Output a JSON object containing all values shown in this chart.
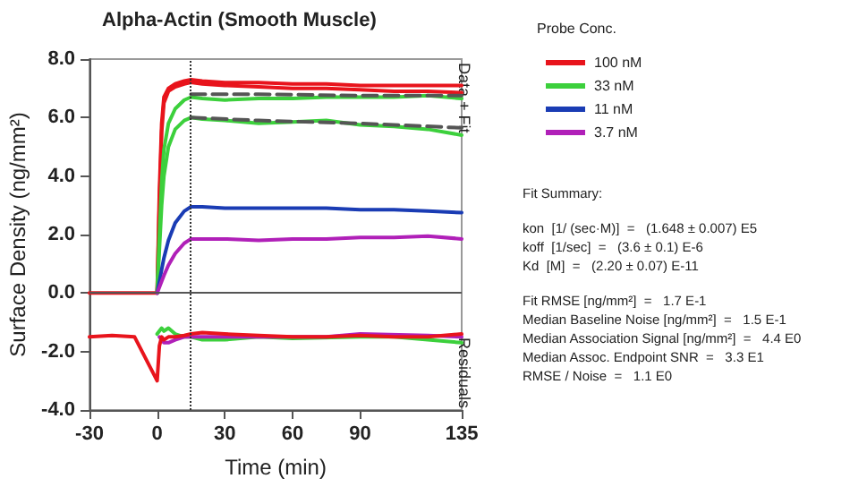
{
  "chart_data": {
    "type": "line",
    "title": "Alpha-Actin (Smooth Muscle)",
    "xlabel": "Time (min)",
    "ylabel": "Surface Density (ng/mm²)",
    "legend_title": "Probe Conc.",
    "x": [
      -30,
      -20,
      -10,
      0,
      1,
      2,
      3,
      5,
      8,
      12,
      15,
      20,
      30,
      45,
      60,
      75,
      90,
      105,
      120,
      135
    ],
    "series": [
      {
        "name": "100 nM",
        "color": "#e8141c",
        "values": [
          0,
          0,
          0,
          0,
          3.5,
          5.8,
          6.7,
          7.0,
          7.15,
          7.25,
          7.3,
          7.25,
          7.2,
          7.2,
          7.15,
          7.15,
          7.1,
          7.1,
          7.1,
          7.1
        ]
      },
      {
        "color": "#e8141c",
        "values": [
          null,
          null,
          null,
          0,
          3.0,
          5.5,
          6.5,
          6.9,
          7.05,
          7.15,
          7.2,
          7.15,
          7.1,
          7.05,
          7.0,
          7.0,
          6.95,
          6.9,
          6.9,
          6.85
        ]
      },
      {
        "name": "33 nM",
        "color": "#3cd03c",
        "values": [
          null,
          null,
          null,
          0,
          2.0,
          3.8,
          4.9,
          5.8,
          6.3,
          6.6,
          6.7,
          6.65,
          6.6,
          6.65,
          6.65,
          6.7,
          6.7,
          6.7,
          6.75,
          6.65
        ]
      },
      {
        "color": "#3cd03c",
        "values": [
          null,
          null,
          null,
          0,
          1.5,
          3.0,
          4.0,
          5.0,
          5.6,
          5.9,
          6.0,
          5.95,
          5.9,
          5.8,
          5.85,
          5.9,
          5.75,
          5.7,
          5.6,
          5.4
        ]
      },
      {
        "name": "11 nM",
        "color": "#1a3cb4",
        "values": [
          null,
          null,
          null,
          0,
          0.4,
          0.8,
          1.2,
          1.8,
          2.4,
          2.8,
          2.95,
          2.95,
          2.9,
          2.9,
          2.9,
          2.9,
          2.85,
          2.85,
          2.8,
          2.75
        ]
      },
      {
        "name": "3.7 nM",
        "color": "#b020b8",
        "values": [
          null,
          null,
          null,
          0,
          0.2,
          0.4,
          0.6,
          0.95,
          1.35,
          1.7,
          1.85,
          1.85,
          1.85,
          1.8,
          1.85,
          1.85,
          1.9,
          1.9,
          1.95,
          1.85
        ]
      },
      {
        "color": "#555555",
        "line_style": "dashed",
        "x": [
          15,
          45,
          90,
          135
        ],
        "values": [
          6.8,
          6.8,
          6.75,
          6.75
        ]
      },
      {
        "color": "#555555",
        "line_style": "dashed",
        "x": [
          15,
          45,
          90,
          135
        ],
        "values": [
          6.0,
          5.9,
          5.8,
          5.65
        ]
      },
      {
        "color": "#3cd03c",
        "values": [
          null,
          null,
          null,
          -1.4,
          -1.3,
          -1.2,
          -1.3,
          -1.2,
          -1.4,
          -1.5,
          -1.5,
          -1.6,
          -1.6,
          -1.5,
          -1.55,
          null,
          -1.5,
          -1.5,
          -1.6,
          -1.7
        ]
      },
      {
        "color": "#b020b8",
        "values": [
          null,
          null,
          null,
          null,
          -1.5,
          -1.6,
          -1.7,
          -1.7,
          -1.6,
          -1.5,
          -1.5,
          -1.5,
          -1.5,
          -1.5,
          -1.5,
          -1.5,
          -1.4,
          null,
          -1.45,
          -1.5
        ]
      },
      {
        "color": "#e8141c",
        "values": [
          -1.5,
          -1.45,
          -1.5,
          -3.0,
          -1.8,
          -1.5,
          -1.6,
          -1.5,
          -1.5,
          -1.45,
          -1.4,
          -1.35,
          -1.4,
          -1.45,
          -1.5,
          -1.5,
          -1.45,
          -1.5,
          -1.5,
          -1.4
        ]
      }
    ],
    "xlim": [
      -30,
      135
    ],
    "xticks": [
      -30,
      0,
      30,
      60,
      90,
      135
    ],
    "ylim": [
      -4,
      8
    ],
    "yticks": [
      {
        "value": -4,
        "label": "-4.0"
      },
      {
        "value": -2,
        "label": "-2.0"
      },
      {
        "value": 0,
        "label": "0.0"
      },
      {
        "value": 2,
        "label": "2.0"
      },
      {
        "value": 4,
        "label": "4.0"
      },
      {
        "value": 6,
        "label": "6.0"
      },
      {
        "value": 8,
        "label": "8.0"
      }
    ],
    "ref_lines": [
      {
        "axis": "x",
        "value": 15,
        "color": "#333333",
        "line_style": "dotted"
      },
      {
        "axis": "y",
        "value": 0,
        "color": "#555555",
        "line_style": "solid"
      }
    ],
    "grid": false,
    "legend": "right",
    "marker": "none",
    "line_style": "solid",
    "annotations": [
      "Data + Fit",
      "Residuals",
      "Fit Summary:",
      "kon  [1/ (sec·M)]  =   (1.648 ± 0.007) E5",
      "koff  [1/sec]  =   (3.6 ± 0.1) E-6",
      "Kd  [M]  =   (2.20 ± 0.07) E-11",
      "Fit RMSE [ng/mm²]  =   1.7 E-1",
      "Median Baseline Noise [ng/mm²]  =   1.5 E-1",
      "Median Association Signal [ng/mm²]  =   4.4 E0",
      "Median Assoc. Endpoint SNR  =   3.3 E1",
      "RMSE / Noise  =   1.1 E0"
    ]
  }
}
